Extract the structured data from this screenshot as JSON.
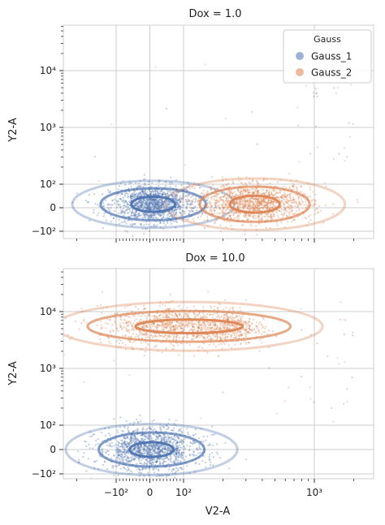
{
  "figure": {
    "xlabel": "V2-A",
    "x_ticks": [
      {
        "label": "−10²",
        "value": -100
      },
      {
        "label": "0",
        "value": 0
      },
      {
        "label": "10²",
        "value": 100
      },
      {
        "label": "10³",
        "value": 1000
      }
    ]
  },
  "colors": {
    "Gauss_1": "#4c72b0",
    "Gauss_2": "#dd8452",
    "grid": "#cccccc",
    "axes": "#333333"
  },
  "chart_data": [
    {
      "type": "scatter",
      "title": "Dox = 1.0",
      "xlabel": "V2-A",
      "ylabel": "Y2-A",
      "x_scale": "symlog",
      "y_scale": "symlog",
      "xlim": [
        -1000,
        2500
      ],
      "ylim": [
        -150,
        60000
      ],
      "y_ticks": [
        {
          "label": "10⁴",
          "value": 10000
        },
        {
          "label": "10³",
          "value": 1000
        },
        {
          "label": "10²",
          "value": 100
        },
        {
          "label": "0",
          "value": 0
        },
        {
          "label": "−10²",
          "value": -100
        }
      ],
      "grid": true,
      "legend": {
        "title": "Gauss",
        "placement": "top-right",
        "entries": [
          "Gauss_1",
          "Gauss_2"
        ]
      },
      "series": [
        {
          "name": "Gauss_1",
          "center": [
            10,
            15
          ],
          "spread": [
            60,
            40
          ],
          "n_points": 1400
        },
        {
          "name": "Gauss_2",
          "center": [
            350,
            20
          ],
          "spread": [
            180,
            40
          ],
          "n_points": 1400
        }
      ],
      "ellipses": [
        {
          "series": "Gauss_1",
          "cx": 10,
          "cy": 15,
          "rx_level": [
            65,
            140,
            230
          ],
          "ry_level": [
            32,
            68,
            100
          ]
        },
        {
          "series": "Gauss_2",
          "cx": 350,
          "cy": 15,
          "rx_level": [
            250,
            550,
            900
          ],
          "ry_level": [
            36,
            75,
            110
          ]
        }
      ]
    },
    {
      "type": "scatter",
      "title": "Dox = 10.0",
      "xlabel": "V2-A",
      "ylabel": "Y2-A",
      "x_scale": "symlog",
      "y_scale": "symlog",
      "xlim": [
        -1000,
        2500
      ],
      "ylim": [
        -150,
        60000
      ],
      "y_ticks": [
        {
          "label": "10⁴",
          "value": 10000
        },
        {
          "label": "10³",
          "value": 1000
        },
        {
          "label": "10²",
          "value": 100
        },
        {
          "label": "0",
          "value": 0
        },
        {
          "label": "−10²",
          "value": -100
        }
      ],
      "grid": true,
      "series": [
        {
          "name": "Gauss_1",
          "center": [
            0,
            0
          ],
          "spread": [
            70,
            45
          ],
          "n_points": 1400
        },
        {
          "name": "Gauss_2",
          "center": [
            110,
            5500
          ],
          "spread": [
            120,
            2500
          ],
          "n_points": 1400
        }
      ],
      "ellipses": [
        {
          "series": "Gauss_1",
          "cx": 5,
          "cy": 0,
          "rx_level": [
            65,
            140,
            250
          ],
          "ry_level": [
            30,
            70,
            105
          ]
        },
        {
          "series": "Gauss_2",
          "cx": 110,
          "cy": 5500,
          "rx_level": [
            190,
            420,
            700
          ],
          "ry_level": [
            0.12,
            0.27,
            0.43
          ]
        }
      ]
    }
  ]
}
